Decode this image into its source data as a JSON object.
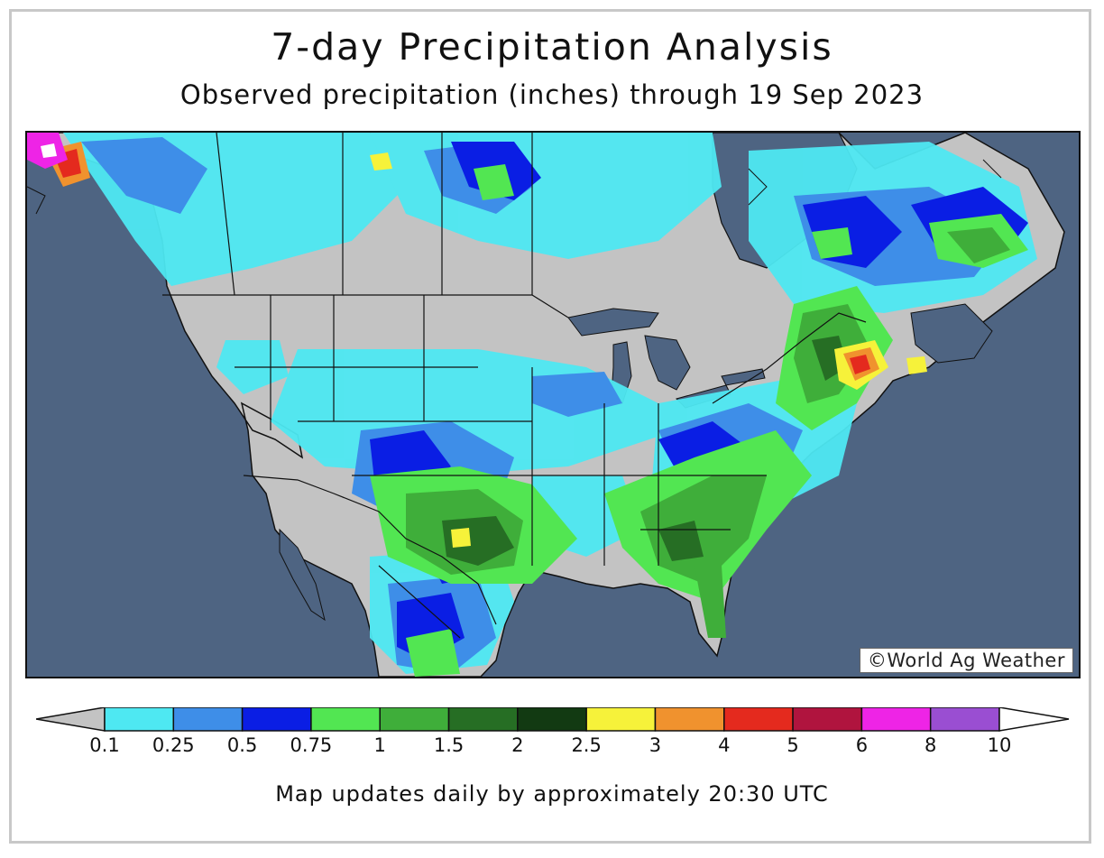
{
  "title": "7-day Precipitation Analysis",
  "subtitle": "Observed precipitation (inches) through 19 Sep 2023",
  "copyright": "©World Ag Weather",
  "footer": "Map updates daily by approximately 20:30 UTC",
  "map": {
    "ocean_color": "#4e6482",
    "land_color": "#c3c3c3",
    "border_color": "#111111"
  },
  "legend": {
    "labels": [
      "0.1",
      "0.25",
      "0.5",
      "0.75",
      "1",
      "1.5",
      "2",
      "2.5",
      "3",
      "4",
      "5",
      "6",
      "8",
      "10"
    ],
    "under_color": "#c3c3c3",
    "over_color": "#ffffff",
    "colors": [
      "#4ee8f2",
      "#3e8ee8",
      "#0a1ee4",
      "#52e652",
      "#3fae3a",
      "#266e24",
      "#123a12",
      "#f6f23a",
      "#f0922e",
      "#e42a1e",
      "#b0143e",
      "#ee24e6",
      "#9a4ed2"
    ]
  }
}
